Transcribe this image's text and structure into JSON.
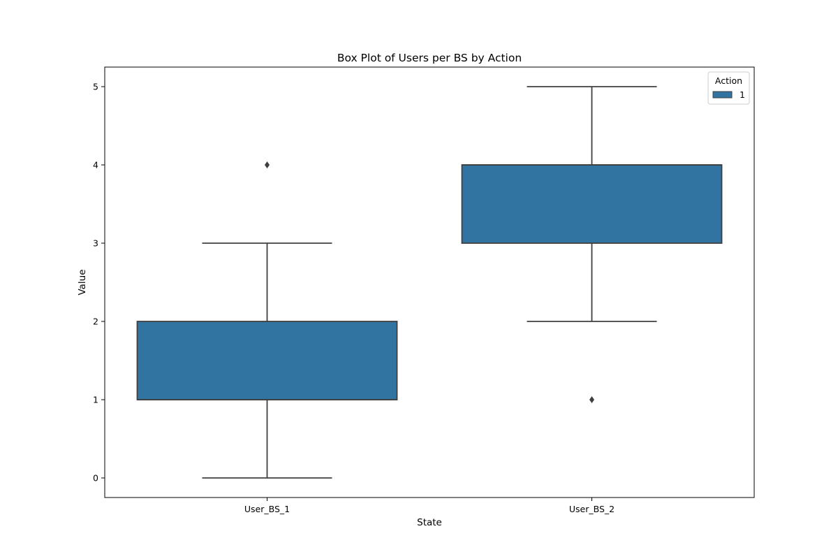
{
  "chart_data": {
    "type": "box",
    "title": "Box Plot of Users per BS by Action",
    "xlabel": "State",
    "ylabel": "Value",
    "categories": [
      "User_BS_1",
      "User_BS_2"
    ],
    "ylim": [
      -0.25,
      5.25
    ],
    "yticks": [
      0,
      1,
      2,
      3,
      4,
      5
    ],
    "grid": false,
    "legend": {
      "title": "Action",
      "placement": "top-right",
      "entries": [
        {
          "label": "1",
          "color": "#3274a1"
        }
      ]
    },
    "series": [
      {
        "name": "1",
        "color": "#3274a1",
        "boxes": [
          {
            "category": "User_BS_1",
            "whisker_low": 0,
            "q1": 1,
            "median": 1,
            "q3": 2,
            "whisker_high": 3,
            "outliers": [
              4
            ]
          },
          {
            "category": "User_BS_2",
            "whisker_low": 2,
            "q1": 3,
            "median": 4,
            "q3": 4,
            "whisker_high": 5,
            "outliers": [
              1
            ]
          }
        ]
      }
    ]
  }
}
